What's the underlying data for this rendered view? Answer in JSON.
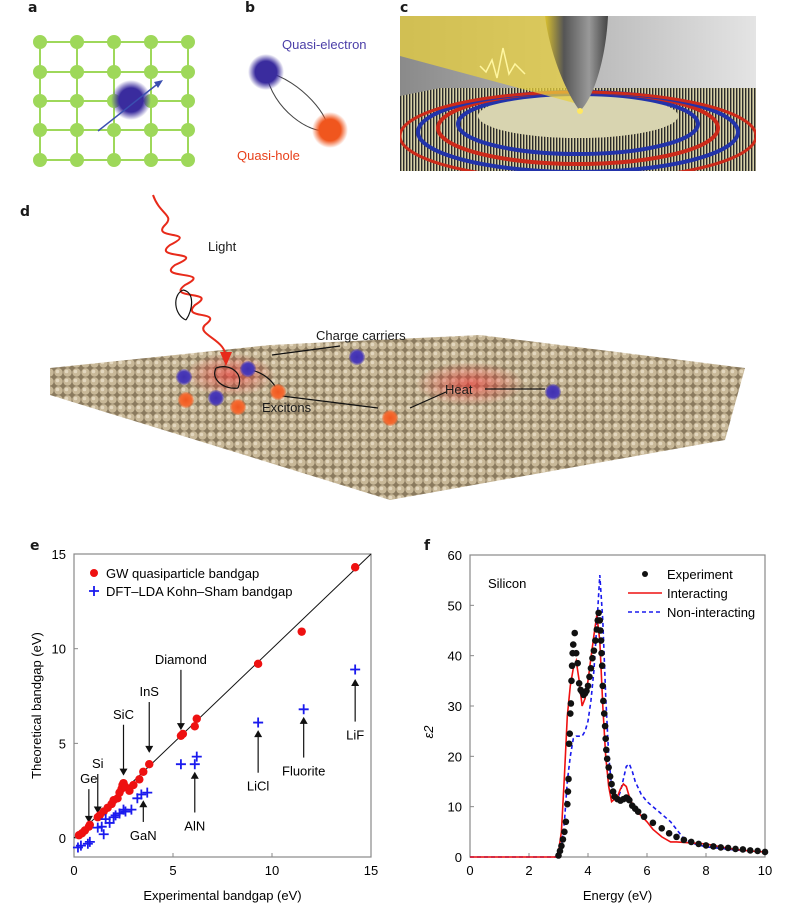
{
  "panels": {
    "a": {
      "label": "a"
    },
    "b": {
      "label": "b",
      "quasi_electron": "Quasi-electron",
      "quasi_hole": "Quasi-hole"
    },
    "c": {
      "label": "c"
    },
    "d": {
      "label": "d",
      "light": "Light",
      "charge_carriers": "Charge carriers",
      "excitons": "Excitons",
      "heat": "Heat"
    },
    "e": {
      "label": "e"
    },
    "f": {
      "label": "f"
    }
  },
  "colors": {
    "lattice_green": "#9ed85a",
    "quasi_electron": "#3b2fa0",
    "quasi_hole": "#f0561e",
    "gw_red": "#ee1111",
    "lda_blue": "#1a1aee",
    "experiment_black": "#111111",
    "atom_tan": "#b9a98a"
  },
  "chart_data": [
    {
      "id": "e",
      "type": "scatter",
      "title": "",
      "xlabel": "Experimental bandgap (eV)",
      "ylabel": "Theoretical bandgap (eV)",
      "xlim": [
        0,
        15
      ],
      "ylim": [
        -1,
        15
      ],
      "xticks": [
        0,
        5,
        10,
        15
      ],
      "yticks": [
        0,
        5,
        10,
        15
      ],
      "grid": false,
      "legend_position": "top-left",
      "reference_line": {
        "x": [
          0,
          15
        ],
        "y": [
          0,
          15
        ]
      },
      "series": [
        {
          "name": "GW quasiparticle bandgap",
          "marker": "circle",
          "points": [
            [
              0.25,
              0.15
            ],
            [
              0.4,
              0.25
            ],
            [
              0.55,
              0.4
            ],
            [
              0.75,
              0.6
            ],
            [
              0.8,
              0.7
            ],
            [
              1.2,
              1.1
            ],
            [
              1.3,
              1.2
            ],
            [
              1.5,
              1.4
            ],
            [
              1.7,
              1.6
            ],
            [
              1.9,
              1.8
            ],
            [
              2.0,
              2.0
            ],
            [
              2.2,
              2.1
            ],
            [
              2.3,
              2.4
            ],
            [
              2.4,
              2.6
            ],
            [
              2.45,
              2.8
            ],
            [
              2.5,
              2.9
            ],
            [
              2.6,
              2.7
            ],
            [
              2.8,
              2.5
            ],
            [
              3.0,
              2.8
            ],
            [
              3.3,
              3.1
            ],
            [
              3.5,
              3.5
            ],
            [
              3.8,
              3.9
            ],
            [
              5.4,
              5.4
            ],
            [
              5.5,
              5.5
            ],
            [
              6.1,
              5.9
            ],
            [
              6.2,
              6.3
            ],
            [
              9.3,
              9.2
            ],
            [
              11.5,
              10.9
            ],
            [
              14.2,
              14.3
            ]
          ]
        },
        {
          "name": "DFT–LDA Kohn–Sham bandgap",
          "marker": "plus",
          "points": [
            [
              0.2,
              -0.5
            ],
            [
              0.35,
              -0.4
            ],
            [
              0.7,
              -0.3
            ],
            [
              0.8,
              -0.2
            ],
            [
              1.2,
              0.55
            ],
            [
              1.4,
              0.6
            ],
            [
              1.5,
              0.2
            ],
            [
              1.6,
              1.0
            ],
            [
              1.8,
              0.8
            ],
            [
              2.0,
              1.1
            ],
            [
              2.1,
              1.2
            ],
            [
              2.3,
              1.3
            ],
            [
              2.5,
              1.5
            ],
            [
              2.6,
              1.4
            ],
            [
              2.9,
              1.5
            ],
            [
              3.2,
              2.1
            ],
            [
              3.4,
              2.3
            ],
            [
              3.7,
              2.4
            ],
            [
              5.4,
              3.9
            ],
            [
              6.1,
              3.9
            ],
            [
              6.2,
              4.3
            ],
            [
              9.3,
              6.1
            ],
            [
              11.6,
              6.8
            ],
            [
              14.2,
              8.9
            ]
          ]
        }
      ],
      "annotations": [
        {
          "text": "Ge",
          "arrow_to": [
            0.75,
            0.8
          ],
          "label_at": [
            0.75,
            2.9
          ],
          "dir": "down"
        },
        {
          "text": "Si",
          "arrow_to": [
            1.2,
            1.3
          ],
          "label_at": [
            1.2,
            3.7
          ],
          "dir": "down"
        },
        {
          "text": "SiC",
          "arrow_to": [
            2.5,
            3.3
          ],
          "label_at": [
            2.5,
            6.3
          ],
          "dir": "down"
        },
        {
          "text": "InS",
          "arrow_to": [
            3.8,
            4.5
          ],
          "label_at": [
            3.8,
            7.5
          ],
          "dir": "down"
        },
        {
          "text": "Diamond",
          "arrow_to": [
            5.4,
            5.7
          ],
          "label_at": [
            5.4,
            9.2
          ],
          "dir": "down"
        },
        {
          "text": "GaN",
          "arrow_to": [
            3.5,
            2.0
          ],
          "label_at": [
            3.5,
            -0.1
          ],
          "dir": "up"
        },
        {
          "text": "AlN",
          "arrow_to": [
            6.1,
            3.5
          ],
          "label_at": [
            6.1,
            0.4
          ],
          "dir": "up"
        },
        {
          "text": "LiCl",
          "arrow_to": [
            9.3,
            5.7
          ],
          "label_at": [
            9.3,
            2.5
          ],
          "dir": "up"
        },
        {
          "text": "Fluorite",
          "arrow_to": [
            11.6,
            6.4
          ],
          "label_at": [
            11.6,
            3.3
          ],
          "dir": "up"
        },
        {
          "text": "LiF",
          "arrow_to": [
            14.2,
            8.4
          ],
          "label_at": [
            14.2,
            5.2
          ],
          "dir": "up"
        }
      ]
    },
    {
      "id": "f",
      "type": "line",
      "title": "",
      "annotation": "Silicon",
      "xlabel": "Energy (eV)",
      "ylabel": "ε2",
      "xlim": [
        0,
        10
      ],
      "ylim": [
        0,
        60
      ],
      "xticks": [
        0,
        2,
        4,
        6,
        8,
        10
      ],
      "yticks": [
        0,
        10,
        20,
        30,
        40,
        50,
        60
      ],
      "grid": false,
      "legend_position": "top-right",
      "series": [
        {
          "name": "Experiment",
          "style": "dots",
          "x": [
            3.0,
            3.05,
            3.1,
            3.15,
            3.2,
            3.25,
            3.3,
            3.32,
            3.34,
            3.36,
            3.38,
            3.4,
            3.42,
            3.44,
            3.46,
            3.48,
            3.5,
            3.55,
            3.6,
            3.65,
            3.7,
            3.75,
            3.8,
            3.85,
            3.9,
            3.95,
            4.0,
            4.05,
            4.1,
            4.15,
            4.2,
            4.25,
            4.3,
            4.33,
            4.36,
            4.4,
            4.42,
            4.44,
            4.46,
            4.48,
            4.5,
            4.52,
            4.55,
            4.58,
            4.6,
            4.62,
            4.65,
            4.7,
            4.75,
            4.8,
            4.85,
            4.9,
            5.0,
            5.1,
            5.2,
            5.3,
            5.35,
            5.4,
            5.5,
            5.6,
            5.7,
            5.9,
            6.2,
            6.5,
            6.75,
            7.0,
            7.25,
            7.5,
            7.75,
            8.0,
            8.25,
            8.5,
            8.75,
            9.0,
            9.25,
            9.5,
            9.75,
            10.0
          ],
          "y": [
            0.3,
            1.2,
            2.2,
            3.5,
            5.0,
            7.0,
            10.5,
            13.0,
            15.5,
            22.5,
            24.5,
            28.5,
            30.5,
            35.0,
            38.0,
            40.5,
            42.2,
            44.5,
            40.5,
            38.5,
            34.5,
            33.2,
            32.8,
            32.2,
            32.5,
            33.0,
            34.0,
            35.8,
            37.5,
            39.5,
            41.0,
            43.0,
            45.2,
            47.0,
            48.5,
            47.0,
            45.0,
            43.0,
            40.5,
            38.0,
            34.0,
            31.0,
            28.5,
            26.0,
            23.5,
            21.3,
            19.5,
            17.8,
            16.0,
            14.5,
            13.0,
            12.0,
            11.5,
            11.2,
            11.5,
            11.8,
            11.6,
            11.3,
            10.2,
            9.6,
            9.0,
            8.0,
            6.8,
            5.7,
            4.7,
            4.0,
            3.4,
            3.0,
            2.6,
            2.3,
            2.1,
            1.9,
            1.8,
            1.6,
            1.5,
            1.3,
            1.2,
            1.0
          ]
        },
        {
          "name": "Interacting",
          "style": "solid",
          "x": [
            0,
            2.9,
            3.0,
            3.1,
            3.2,
            3.3,
            3.4,
            3.5,
            3.6,
            3.7,
            3.8,
            3.9,
            4.0,
            4.1,
            4.2,
            4.3,
            4.4,
            4.5,
            4.6,
            4.7,
            4.8,
            4.9,
            5.0,
            5.1,
            5.2,
            5.3,
            5.4,
            5.5,
            5.6,
            5.8,
            6.0,
            6.2,
            6.5,
            6.8,
            7.0,
            7.5,
            8.0,
            8.5,
            9.0,
            9.5,
            10.0
          ],
          "y": [
            0,
            0,
            1.0,
            5.0,
            16.0,
            28.0,
            34.0,
            37.5,
            39.0,
            35.0,
            30.0,
            31.5,
            35.0,
            39.5,
            44.0,
            48.0,
            43.0,
            30.0,
            20.0,
            14.0,
            11.0,
            11.5,
            12.0,
            13.5,
            14.5,
            14.0,
            12.0,
            10.5,
            9.5,
            8.2,
            7.0,
            5.5,
            4.0,
            3.0,
            3.0,
            2.8,
            2.6,
            2.0,
            1.5,
            1.2,
            1.0
          ]
        },
        {
          "name": "Non-interacting",
          "style": "dashed",
          "x": [
            0,
            2.9,
            3.0,
            3.1,
            3.2,
            3.3,
            3.4,
            3.5,
            3.6,
            3.7,
            3.8,
            3.9,
            4.0,
            4.1,
            4.2,
            4.3,
            4.4,
            4.5,
            4.6,
            4.7,
            4.8,
            4.9,
            5.0,
            5.1,
            5.2,
            5.3,
            5.4,
            5.5,
            5.6,
            5.8,
            6.0,
            6.2,
            6.5,
            6.8,
            7.0,
            7.2,
            7.5,
            8.0,
            8.5,
            9.0,
            9.5,
            10.0
          ],
          "y": [
            0,
            0,
            0.5,
            2.0,
            7.0,
            15.0,
            20.0,
            23.5,
            24.0,
            24.0,
            24.0,
            25.0,
            27.0,
            31.0,
            37.0,
            46.0,
            56.0,
            47.0,
            32.0,
            20.0,
            14.0,
            12.0,
            11.5,
            13.0,
            15.5,
            18.0,
            18.5,
            17.0,
            15.0,
            12.5,
            11.0,
            10.0,
            8.5,
            7.0,
            5.5,
            4.0,
            2.8,
            2.0,
            1.7,
            1.4,
            1.2,
            1.0
          ]
        }
      ]
    }
  ]
}
